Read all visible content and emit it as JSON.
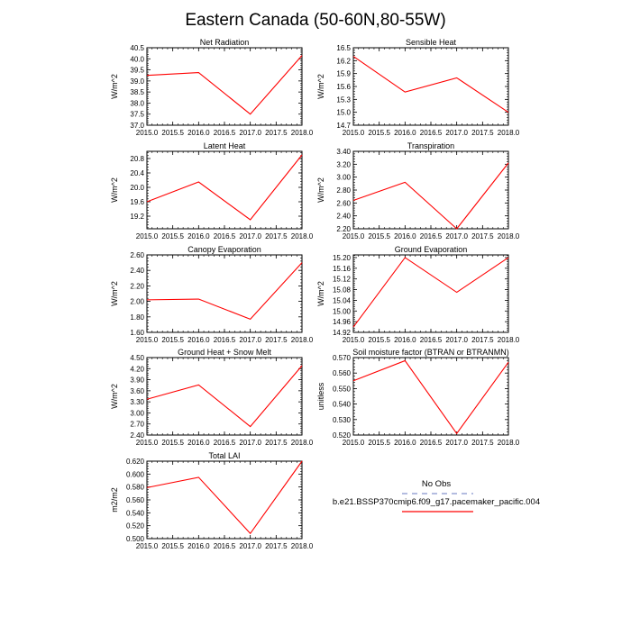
{
  "figure": {
    "title": "Eastern Canada (50-60N,80-55W)",
    "line_color": "#ff0000",
    "obs_line_color": "#9aa6d6"
  },
  "legend": {
    "obs_label": "No Obs",
    "model_label": "b.e21.BSSP370cmip6.f09_g17.pacemaker_pacific.004"
  },
  "chart_data": [
    {
      "type": "line",
      "title": "Net Radiation",
      "ylabel": "W/m^2",
      "x": [
        2015,
        2016,
        2017,
        2018
      ],
      "values": [
        39.25,
        39.38,
        37.5,
        40.15
      ],
      "ylim": [
        37.0,
        40.5
      ],
      "yticks": [
        37.0,
        37.5,
        38.0,
        38.5,
        39.0,
        39.5,
        40.0,
        40.5
      ],
      "ytick_labels": [
        "37.0",
        "37.5",
        "38.0",
        "38.5",
        "39.0",
        "39.5",
        "40.0",
        "40.5"
      ],
      "xlim": [
        2015,
        2018
      ],
      "xticks": [
        2015,
        2015.5,
        2016,
        2016.5,
        2017,
        2017.5,
        2018
      ],
      "xtick_labels": [
        "2015.0",
        "2015.5",
        "2016.0",
        "2016.5",
        "2017.0",
        "2017.5",
        "2018.0"
      ]
    },
    {
      "type": "line",
      "title": "Sensible Heat",
      "ylabel": "W/m^2",
      "x": [
        2015,
        2016,
        2017,
        2018
      ],
      "values": [
        16.3,
        15.47,
        15.8,
        15.0
      ],
      "ylim": [
        14.7,
        16.5
      ],
      "yticks": [
        14.7,
        15.0,
        15.3,
        15.6,
        15.9,
        16.2,
        16.5
      ],
      "ytick_labels": [
        "14.7",
        "15.0",
        "15.3",
        "15.6",
        "15.9",
        "16.2",
        "16.5"
      ],
      "xlim": [
        2015,
        2018
      ],
      "xticks": [
        2015,
        2015.5,
        2016,
        2016.5,
        2017,
        2017.5,
        2018
      ],
      "xtick_labels": [
        "2015.0",
        "2015.5",
        "2016.0",
        "2016.5",
        "2017.0",
        "2017.5",
        "2018.0"
      ]
    },
    {
      "type": "line",
      "title": "Latent Heat",
      "ylabel": "W/m^2",
      "x": [
        2015,
        2016,
        2017,
        2018
      ],
      "values": [
        19.6,
        20.15,
        19.1,
        20.9
      ],
      "ylim": [
        18.85,
        21.0
      ],
      "yticks": [
        19.2,
        19.6,
        20.0,
        20.4,
        20.8
      ],
      "ytick_labels": [
        "19.2",
        "19.6",
        "20.0",
        "20.4",
        "20.8"
      ],
      "xlim": [
        2015,
        2018
      ],
      "xticks": [
        2015,
        2015.5,
        2016,
        2016.5,
        2017,
        2017.5,
        2018
      ],
      "xtick_labels": [
        "2015.0",
        "2015.5",
        "2016.0",
        "2016.5",
        "2017.0",
        "2017.5",
        "2018.0"
      ]
    },
    {
      "type": "line",
      "title": "Transpiration",
      "ylabel": "W/m^2",
      "x": [
        2015,
        2016,
        2017,
        2018
      ],
      "values": [
        2.64,
        2.92,
        2.2,
        3.22
      ],
      "ylim": [
        2.2,
        3.4
      ],
      "yticks": [
        2.2,
        2.4,
        2.6,
        2.8,
        3.0,
        3.2,
        3.4
      ],
      "ytick_labels": [
        "2.20",
        "2.40",
        "2.60",
        "2.80",
        "3.00",
        "3.20",
        "3.40"
      ],
      "xlim": [
        2015,
        2018
      ],
      "xticks": [
        2015,
        2015.5,
        2016,
        2016.5,
        2017,
        2017.5,
        2018
      ],
      "xtick_labels": [
        "2015.0",
        "2015.5",
        "2016.0",
        "2016.5",
        "2017.0",
        "2017.5",
        "2018.0"
      ]
    },
    {
      "type": "line",
      "title": "Canopy Evaporation",
      "ylabel": "W/m^2",
      "x": [
        2015,
        2016,
        2017,
        2018
      ],
      "values": [
        2.02,
        2.03,
        1.77,
        2.5
      ],
      "ylim": [
        1.6,
        2.6
      ],
      "yticks": [
        1.6,
        1.8,
        2.0,
        2.2,
        2.4,
        2.6
      ],
      "ytick_labels": [
        "1.60",
        "1.80",
        "2.00",
        "2.20",
        "2.40",
        "2.60"
      ],
      "xlim": [
        2015,
        2018
      ],
      "xticks": [
        2015,
        2015.5,
        2016,
        2016.5,
        2017,
        2017.5,
        2018
      ],
      "xtick_labels": [
        "2015.0",
        "2015.5",
        "2016.0",
        "2016.5",
        "2017.0",
        "2017.5",
        "2018.0"
      ]
    },
    {
      "type": "line",
      "title": "Ground Evaporation",
      "ylabel": "W/m^2",
      "x": [
        2015,
        2016,
        2017,
        2018
      ],
      "values": [
        14.94,
        15.2,
        15.07,
        15.2
      ],
      "ylim": [
        14.92,
        15.21
      ],
      "yticks": [
        14.92,
        14.96,
        15.0,
        15.04,
        15.08,
        15.12,
        15.16,
        15.2
      ],
      "ytick_labels": [
        "14.92",
        "14.96",
        "15.00",
        "15.04",
        "15.08",
        "15.12",
        "15.16",
        "15.20"
      ],
      "xlim": [
        2015,
        2018
      ],
      "xticks": [
        2015,
        2015.5,
        2016,
        2016.5,
        2017,
        2017.5,
        2018
      ],
      "xtick_labels": [
        "2015.0",
        "2015.5",
        "2016.0",
        "2016.5",
        "2017.0",
        "2017.5",
        "2018.0"
      ]
    },
    {
      "type": "line",
      "title": "Ground Heat + Snow Melt",
      "ylabel": "W/m^2",
      "x": [
        2015,
        2016,
        2017,
        2018
      ],
      "values": [
        3.37,
        3.76,
        2.63,
        4.28
      ],
      "ylim": [
        2.4,
        4.5
      ],
      "yticks": [
        2.4,
        2.7,
        3.0,
        3.3,
        3.6,
        3.9,
        4.2,
        4.5
      ],
      "ytick_labels": [
        "2.40",
        "2.70",
        "3.00",
        "3.30",
        "3.60",
        "3.90",
        "4.20",
        "4.50"
      ],
      "xlim": [
        2015,
        2018
      ],
      "xticks": [
        2015,
        2015.5,
        2016,
        2016.5,
        2017,
        2017.5,
        2018
      ],
      "xtick_labels": [
        "2015.0",
        "2015.5",
        "2016.0",
        "2016.5",
        "2017.0",
        "2017.5",
        "2018.0"
      ]
    },
    {
      "type": "line",
      "title": "Soil moisture factor (BTRAN or BTRANMN)",
      "ylabel": "unitless",
      "x": [
        2015,
        2016,
        2017,
        2018
      ],
      "values": [
        0.555,
        0.568,
        0.521,
        0.567
      ],
      "ylim": [
        0.52,
        0.57
      ],
      "yticks": [
        0.52,
        0.53,
        0.54,
        0.55,
        0.56,
        0.57
      ],
      "ytick_labels": [
        "0.520",
        "0.530",
        "0.540",
        "0.550",
        "0.560",
        "0.570"
      ],
      "xlim": [
        2015,
        2018
      ],
      "xticks": [
        2015,
        2015.5,
        2016,
        2016.5,
        2017,
        2017.5,
        2018
      ],
      "xtick_labels": [
        "2015.0",
        "2015.5",
        "2016.0",
        "2016.5",
        "2017.0",
        "2017.5",
        "2018.0"
      ]
    },
    {
      "type": "line",
      "title": "Total LAI",
      "ylabel": "m2/m2",
      "x": [
        2015,
        2016,
        2017,
        2018
      ],
      "values": [
        0.579,
        0.595,
        0.508,
        0.62
      ],
      "ylim": [
        0.5,
        0.62
      ],
      "yticks": [
        0.5,
        0.52,
        0.54,
        0.56,
        0.58,
        0.6,
        0.62
      ],
      "ytick_labels": [
        "0.500",
        "0.520",
        "0.540",
        "0.560",
        "0.580",
        "0.600",
        "0.620"
      ],
      "xlim": [
        2015,
        2018
      ],
      "xticks": [
        2015,
        2015.5,
        2016,
        2016.5,
        2017,
        2017.5,
        2018
      ],
      "xtick_labels": [
        "2015.0",
        "2015.5",
        "2016.0",
        "2016.5",
        "2017.0",
        "2017.5",
        "2018.0"
      ]
    }
  ]
}
